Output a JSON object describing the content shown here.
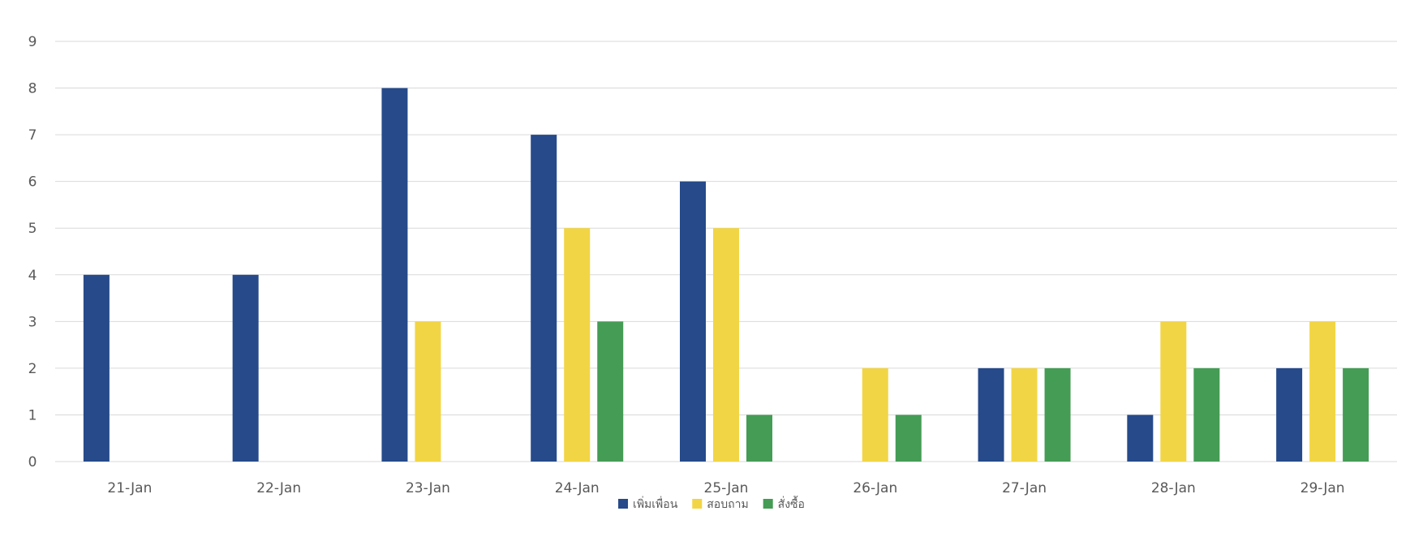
{
  "chart_data": {
    "type": "bar",
    "title": "",
    "xlabel": "",
    "ylabel": "",
    "ylim": [
      0,
      9
    ],
    "yticks": [
      0,
      1,
      2,
      3,
      4,
      5,
      6,
      7,
      8,
      9
    ],
    "grid": true,
    "legend_position": "bottom",
    "categories": [
      "21-Jan",
      "22-Jan",
      "23-Jan",
      "24-Jan",
      "25-Jan",
      "26-Jan",
      "27-Jan",
      "28-Jan",
      "29-Jan"
    ],
    "series": [
      {
        "name": "เพิ่มเพื่อน",
        "color": "#264a8a",
        "values": [
          4,
          4,
          8,
          7,
          6,
          0,
          2,
          1,
          2
        ]
      },
      {
        "name": "สอบถาม",
        "color": "#f2d544",
        "values": [
          0,
          0,
          3,
          5,
          5,
          2,
          2,
          3,
          3
        ]
      },
      {
        "name": "สั่งซื้อ",
        "color": "#449c55",
        "values": [
          0,
          0,
          0,
          3,
          1,
          1,
          2,
          2,
          2
        ]
      }
    ]
  }
}
